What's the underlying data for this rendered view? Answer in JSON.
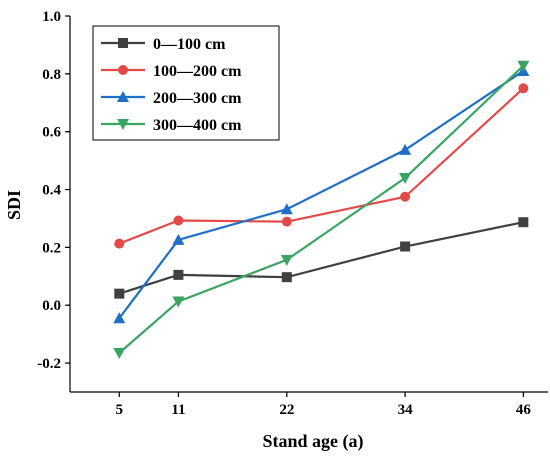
{
  "chart_data": {
    "type": "line",
    "xlabel": "Stand age (a)",
    "ylabel": "SDI",
    "x": [
      5,
      11,
      22,
      34,
      46
    ],
    "x_ticks": [
      "5",
      "11",
      "22",
      "34",
      "46"
    ],
    "y_ticks": [
      "-0.2",
      "0.0",
      "0.2",
      "0.4",
      "0.6",
      "0.8",
      "1.0"
    ],
    "xlim": [
      0,
      48.5
    ],
    "ylim": [
      -0.3,
      1.0
    ],
    "grid": false,
    "legend_position": "top-left",
    "series": [
      {
        "name": "0—100 cm",
        "color": "#404040",
        "marker": "square",
        "values": [
          0.04,
          0.105,
          0.097,
          0.203,
          0.287
        ]
      },
      {
        "name": "100—200 cm",
        "color": "#e34a47",
        "marker": "circle",
        "values": [
          0.213,
          0.293,
          0.289,
          0.375,
          0.75
        ]
      },
      {
        "name": "200—300 cm",
        "color": "#1f6fc6",
        "marker": "triangle-up",
        "values": [
          -0.045,
          0.226,
          0.332,
          0.537,
          0.81
        ]
      },
      {
        "name": "300—400 cm",
        "color": "#3aa563",
        "marker": "triangle-down",
        "values": [
          -0.165,
          0.013,
          0.157,
          0.44,
          0.828
        ]
      }
    ]
  }
}
